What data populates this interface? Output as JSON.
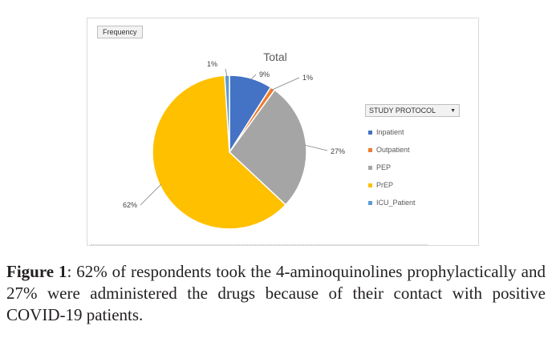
{
  "field_button": "Frequency",
  "legend": {
    "header": "STUDY PROTOCOL",
    "dropdown_icon": "dropdown-triangle-icon"
  },
  "chart_data": {
    "type": "pie",
    "title": "Total",
    "series": [
      {
        "name": "Inpatient",
        "value": 9,
        "label": "9%",
        "color": "#4472c4"
      },
      {
        "name": "Outpatient",
        "value": 1,
        "label": "1%",
        "color": "#ed7d31"
      },
      {
        "name": "PEP",
        "value": 27,
        "label": "27%",
        "color": "#a5a5a5"
      },
      {
        "name": "PrEP",
        "value": 62,
        "label": "62%",
        "color": "#ffc000"
      },
      {
        "name": "ICU_Patient",
        "value": 1,
        "label": "1%",
        "color": "#5b9bd5"
      }
    ],
    "legend_position": "right"
  },
  "caption": {
    "label": "Figure 1",
    "text": ": 62% of respondents took the 4-aminoquinolines prophylactically and 27% were administered the drugs because of their contact with positive COVID-19 patients."
  }
}
